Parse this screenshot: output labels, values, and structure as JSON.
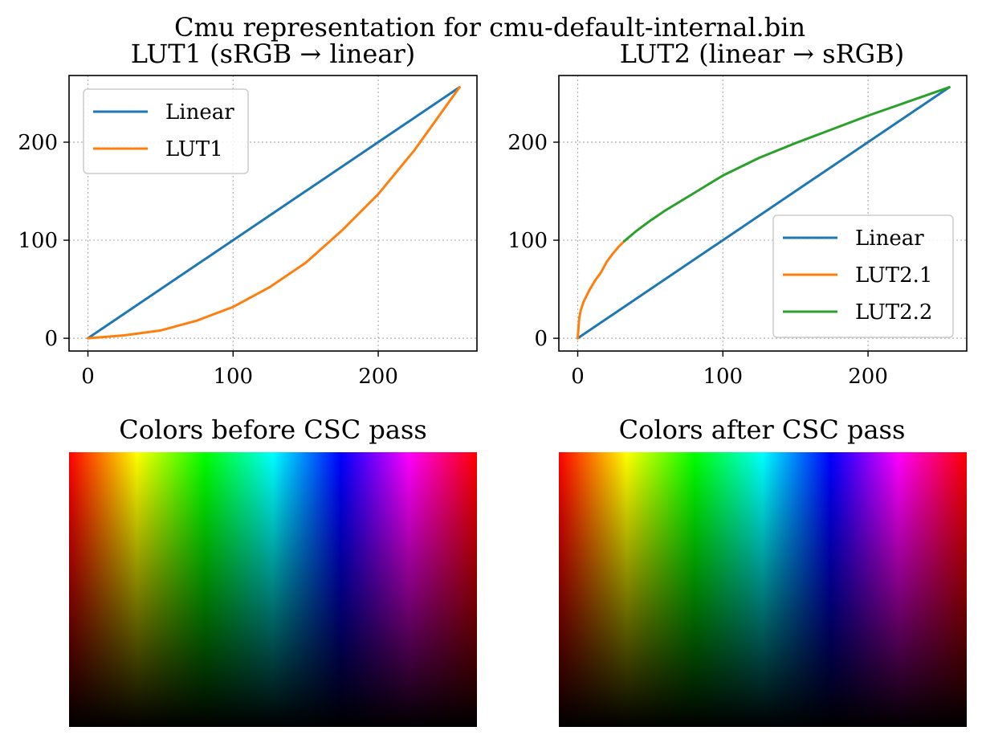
{
  "figure": {
    "suptitle": "Cmu representation for cmu-default-internal.bin"
  },
  "chart_data": [
    {
      "type": "line",
      "title": "LUT1 (sRGB → linear)",
      "xlabel": "",
      "ylabel": "",
      "xlim": [
        -13,
        268
      ],
      "ylim": [
        -13,
        268
      ],
      "xticks": [
        0,
        100,
        200
      ],
      "yticks": [
        0,
        100,
        200
      ],
      "grid": true,
      "legend": "top-left",
      "series": [
        {
          "name": "Linear",
          "color": "#1f77b4",
          "x": [
            0,
            256
          ],
          "y": [
            0,
            256
          ]
        },
        {
          "name": "LUT1",
          "color": "#ff7f0e",
          "x": [
            0,
            25,
            50,
            75,
            100,
            125,
            150,
            175,
            200,
            225,
            256
          ],
          "y": [
            0,
            3,
            8,
            18,
            32,
            52,
            77,
            110,
            147,
            192,
            256
          ]
        }
      ]
    },
    {
      "type": "line",
      "title": "LUT2 (linear → sRGB)",
      "xlabel": "",
      "ylabel": "",
      "xlim": [
        -13,
        268
      ],
      "ylim": [
        -13,
        268
      ],
      "xticks": [
        0,
        100,
        200
      ],
      "yticks": [
        0,
        100,
        200
      ],
      "grid": true,
      "legend": "bottom-right",
      "series": [
        {
          "name": "Linear",
          "color": "#1f77b4",
          "x": [
            0,
            256
          ],
          "y": [
            0,
            256
          ]
        },
        {
          "name": "LUT2.1",
          "color": "#ff7f0e",
          "x": [
            0,
            1,
            2,
            4,
            6,
            8,
            12,
            16,
            20,
            24,
            28,
            32
          ],
          "y": [
            0,
            20,
            28,
            37,
            43,
            49,
            59,
            67,
            78,
            86,
            93,
            99
          ]
        },
        {
          "name": "LUT2.2",
          "color": "#2ca02c",
          "x": [
            32,
            40,
            50,
            60,
            80,
            100,
            125,
            150,
            175,
            200,
            225,
            256
          ],
          "y": [
            99,
            109,
            120,
            130,
            148,
            166,
            184,
            199,
            213,
            227,
            240,
            256
          ]
        }
      ]
    }
  ],
  "images": {
    "before_title": "Colors before CSC pass",
    "after_title": "Colors after CSC pass"
  }
}
